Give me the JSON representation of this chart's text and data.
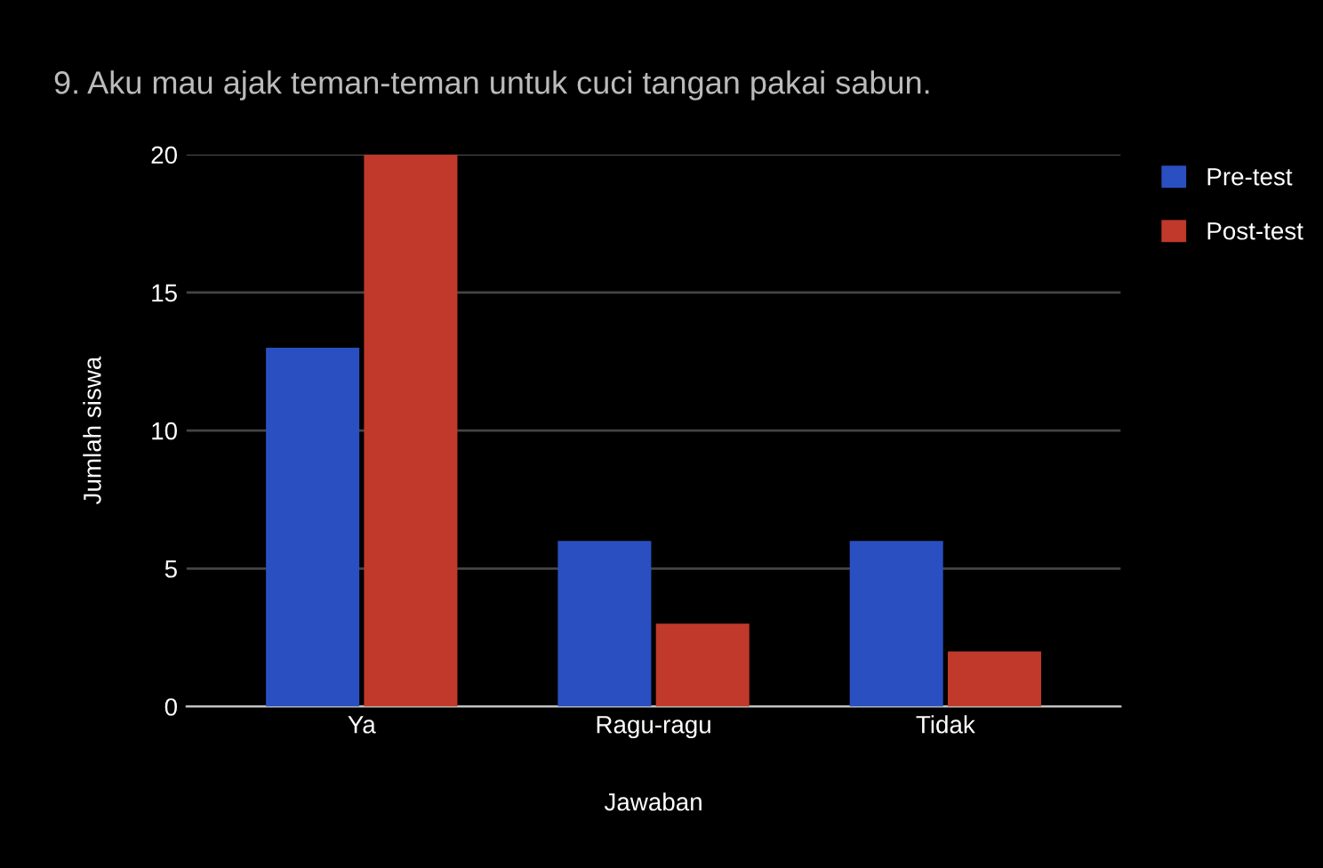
{
  "chart_data": {
    "type": "bar",
    "title": "9. Aku mau ajak teman-teman untuk cuci tangan pakai sabun.",
    "xlabel": "Jawaban",
    "ylabel": "Jumlah siswa",
    "categories": [
      "Ya",
      "Ragu-ragu",
      "Tidak"
    ],
    "series": [
      {
        "name": "Pre-test",
        "color": "#2a4fc0",
        "values": [
          13,
          6,
          6
        ]
      },
      {
        "name": "Post-test",
        "color": "#c0392b",
        "values": [
          20,
          3,
          2
        ]
      }
    ],
    "ylim": [
      0,
      20
    ],
    "yticks": [
      0,
      5,
      10,
      15,
      20
    ],
    "grid": "y",
    "legend": "top right"
  }
}
